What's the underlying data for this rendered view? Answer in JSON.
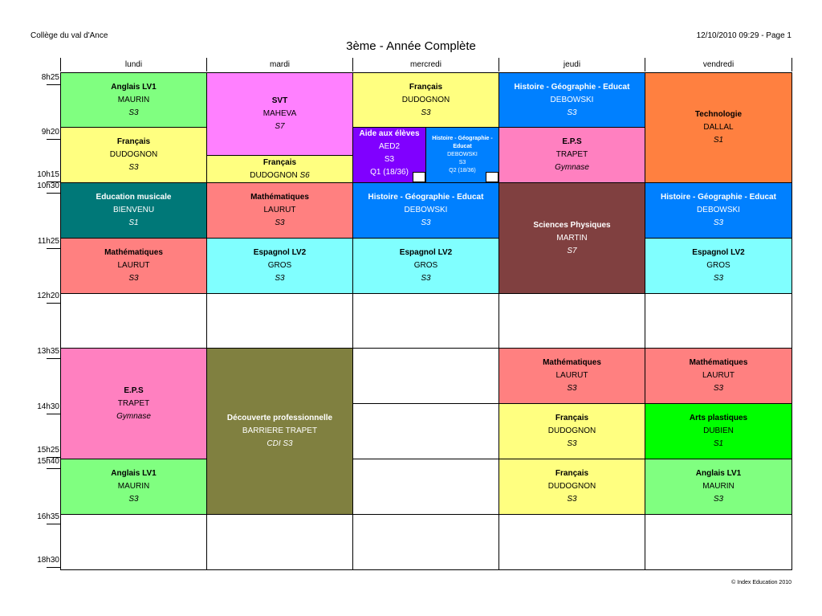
{
  "header": {
    "school": "Collège du val d'Ance",
    "printed": "12/10/2010 09:29 - Page 1",
    "title": "3ème - Année Complète"
  },
  "footer": {
    "copyright": "© Index Education 2010"
  },
  "days": [
    "lundi",
    "mardi",
    "mercredi",
    "jeudi",
    "vendredi"
  ],
  "times": [
    "8h25",
    "9h20",
    "10h15",
    "10h30",
    "11h25",
    "12h20",
    "13h35",
    "14h30",
    "15h25",
    "15h40",
    "16h35",
    "18h30"
  ],
  "lessons": [
    {
      "day": "lundi",
      "start": "8h25",
      "subject": "Anglais LV1",
      "teacher": "MAURIN",
      "room": "S3",
      "color": "#80ff80"
    },
    {
      "day": "lundi",
      "start": "9h20",
      "subject": "Français",
      "teacher": "DUDOGNON",
      "room": "S3",
      "color": "#ffff80"
    },
    {
      "day": "lundi",
      "start": "10h30",
      "subject": "Education musicale",
      "teacher": "BIENVENU",
      "room": "S1",
      "color": "#007878",
      "text_color": "#ffffff"
    },
    {
      "day": "lundi",
      "start": "11h25",
      "subject": "Mathématiques",
      "teacher": "LAURUT",
      "room": "S3",
      "color": "#ff8080"
    },
    {
      "day": "lundi",
      "start": "13h35",
      "subject": "E.P.S",
      "teacher": "TRAPET",
      "room": "Gymnase",
      "color": "#ff80c0"
    },
    {
      "day": "lundi",
      "start": "15h40",
      "subject": "Anglais LV1",
      "teacher": "MAURIN",
      "room": "S3",
      "color": "#80ff80"
    },
    {
      "day": "mardi",
      "start": "8h25",
      "subject": "SVT",
      "teacher": "MAHEVA",
      "room": "S7",
      "color": "#ff80ff"
    },
    {
      "day": "mardi",
      "start": "9h50",
      "subject": "Français",
      "teacher": "DUDOGNON",
      "room": "S6",
      "color": "#ffff80"
    },
    {
      "day": "mardi",
      "start": "10h30",
      "subject": "Mathématiques",
      "teacher": "LAURUT",
      "room": "S3",
      "color": "#ff8080"
    },
    {
      "day": "mardi",
      "start": "11h25",
      "subject": "Espagnol LV2",
      "teacher": "GROS",
      "room": "S3",
      "color": "#80ffff"
    },
    {
      "day": "mardi",
      "start": "13h35",
      "subject": "Découverte professionnelle",
      "teacher": "BARRIERE TRAPET",
      "room": "CDI S3",
      "color": "#808040",
      "text_color": "#ffffff"
    },
    {
      "day": "mercredi",
      "start": "8h25",
      "subject": "Français",
      "teacher": "DUDOGNON",
      "room": "S3",
      "color": "#ffff80"
    },
    {
      "day": "mercredi",
      "start": "9h20",
      "subject": "Aide aux élèves",
      "teacher": "AED2",
      "room": "S3",
      "group": "Q1 (18/36)",
      "tag": "Q1",
      "color": "#8000ff",
      "text_color": "#ffffff"
    },
    {
      "day": "mercredi",
      "start": "9h20",
      "subject": "Histoire - Géographie - Educat",
      "teacher": "DEBOWSKI",
      "room": "S3",
      "group": "Q2 (18/36)",
      "tag": "Q2",
      "color": "#0080ff",
      "text_color": "#ffffff"
    },
    {
      "day": "mercredi",
      "start": "10h30",
      "subject": "Histoire - Géographie - Educat",
      "teacher": "DEBOWSKI",
      "room": "S3",
      "color": "#0080ff",
      "text_color": "#ffffff"
    },
    {
      "day": "mercredi",
      "start": "11h25",
      "subject": "Espagnol LV2",
      "teacher": "GROS",
      "room": "S3",
      "color": "#80ffff"
    },
    {
      "day": "jeudi",
      "start": "8h25",
      "subject": "Histoire - Géographie - Educat",
      "teacher": "DEBOWSKI",
      "room": "S3",
      "color": "#0080ff",
      "text_color": "#ffffff"
    },
    {
      "day": "jeudi",
      "start": "9h20",
      "subject": "E.P.S",
      "teacher": "TRAPET",
      "room": "Gymnase",
      "color": "#ff80c0"
    },
    {
      "day": "jeudi",
      "start": "10h30",
      "subject": "Sciences Physiques",
      "teacher": "MARTIN",
      "room": "S7",
      "color": "#804040",
      "text_color": "#ffffff"
    },
    {
      "day": "jeudi",
      "start": "13h35",
      "subject": "Mathématiques",
      "teacher": "LAURUT",
      "room": "S3",
      "color": "#ff8080"
    },
    {
      "day": "jeudi",
      "start": "14h30",
      "subject": "Français",
      "teacher": "DUDOGNON",
      "room": "S3",
      "color": "#ffff80"
    },
    {
      "day": "jeudi",
      "start": "15h40",
      "subject": "Français",
      "teacher": "DUDOGNON",
      "room": "S3",
      "color": "#ffff80"
    },
    {
      "day": "vendredi",
      "start": "8h25",
      "subject": "Technologie",
      "teacher": "DALLAL",
      "room": "S1",
      "color": "#ff8040"
    },
    {
      "day": "vendredi",
      "start": "10h30",
      "subject": "Histoire - Géographie - Educat",
      "teacher": "DEBOWSKI",
      "room": "S3",
      "color": "#0080ff",
      "text_color": "#ffffff"
    },
    {
      "day": "vendredi",
      "start": "11h25",
      "subject": "Espagnol LV2",
      "teacher": "GROS",
      "room": "S3",
      "color": "#80ffff"
    },
    {
      "day": "vendredi",
      "start": "13h35",
      "subject": "Mathématiques",
      "teacher": "LAURUT",
      "room": "S3",
      "color": "#ff8080"
    },
    {
      "day": "vendredi",
      "start": "14h30",
      "subject": "Arts plastiques",
      "teacher": "DUBIEN",
      "room": "S1",
      "color": "#00ff00"
    },
    {
      "day": "vendredi",
      "start": "15h40",
      "subject": "Anglais LV1",
      "teacher": "MAURIN",
      "room": "S3",
      "color": "#80ff80"
    }
  ]
}
